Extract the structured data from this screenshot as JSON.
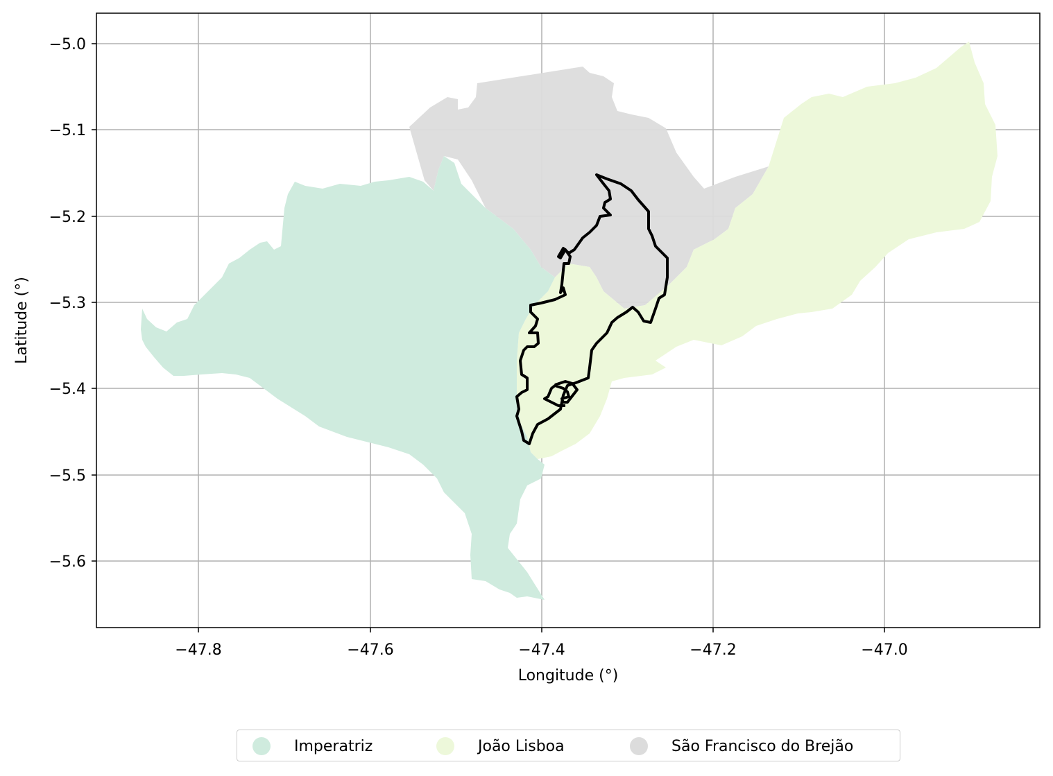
{
  "map": {
    "x_ticks": [
      "−47.8",
      "−47.6",
      "−47.4",
      "−47.2",
      "−47.0"
    ],
    "y_ticks": [
      "−5.0",
      "−5.1",
      "−5.2",
      "−5.3",
      "−5.4",
      "−5.5",
      "−5.6"
    ],
    "xlabel": "Longitude (°)",
    "ylabel": "Latitude (°)",
    "xlim": [
      -47.92,
      -46.82
    ],
    "ylim": [
      -5.68,
      -4.965
    ],
    "grid": true
  },
  "legend": {
    "placement": "bottom-center",
    "items": [
      {
        "label": "Imperatriz",
        "color": "#cfebde"
      },
      {
        "label": "João Lisboa",
        "color": "#edf8da"
      },
      {
        "label": "São Francisco do Brejão",
        "color": "#dcdcdc"
      }
    ]
  },
  "regions": [
    {
      "name": "Imperatriz",
      "color": "#cfebde"
    },
    {
      "name": "João Lisboa",
      "color": "#edf8da"
    },
    {
      "name": "São Francisco do Brejão",
      "color": "#dcdcdc"
    }
  ],
  "outline": {
    "color": "#000000"
  }
}
